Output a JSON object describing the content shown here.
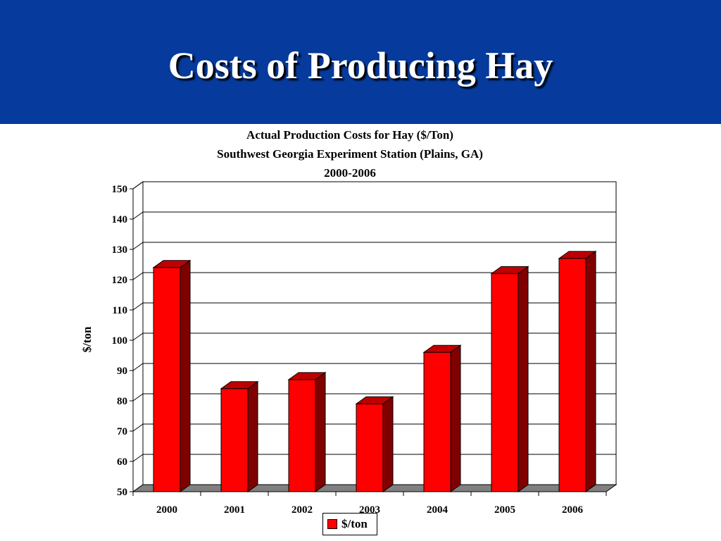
{
  "slide": {
    "title": "Costs of Producing Hay",
    "background_color": "#063a9c"
  },
  "chart_data": {
    "type": "bar",
    "title_lines": [
      "Actual Production Costs for Hay ($/Ton)",
      "Southwest Georgia Experiment Station (Plains, GA)",
      "2000-2006"
    ],
    "ylabel": "$/ton",
    "xlabel": "",
    "categories": [
      "2000",
      "2001",
      "2002",
      "2003",
      "2004",
      "2005",
      "2006"
    ],
    "series": [
      {
        "name": "$/ton",
        "values": [
          124,
          84,
          87,
          79,
          96,
          122,
          127
        ],
        "color": "#ff0000"
      }
    ],
    "ylim": [
      50,
      150
    ],
    "yticks": [
      50,
      60,
      70,
      80,
      90,
      100,
      110,
      120,
      130,
      140,
      150
    ],
    "grid": true,
    "legend": "bottom-center",
    "style": "3d-column"
  }
}
